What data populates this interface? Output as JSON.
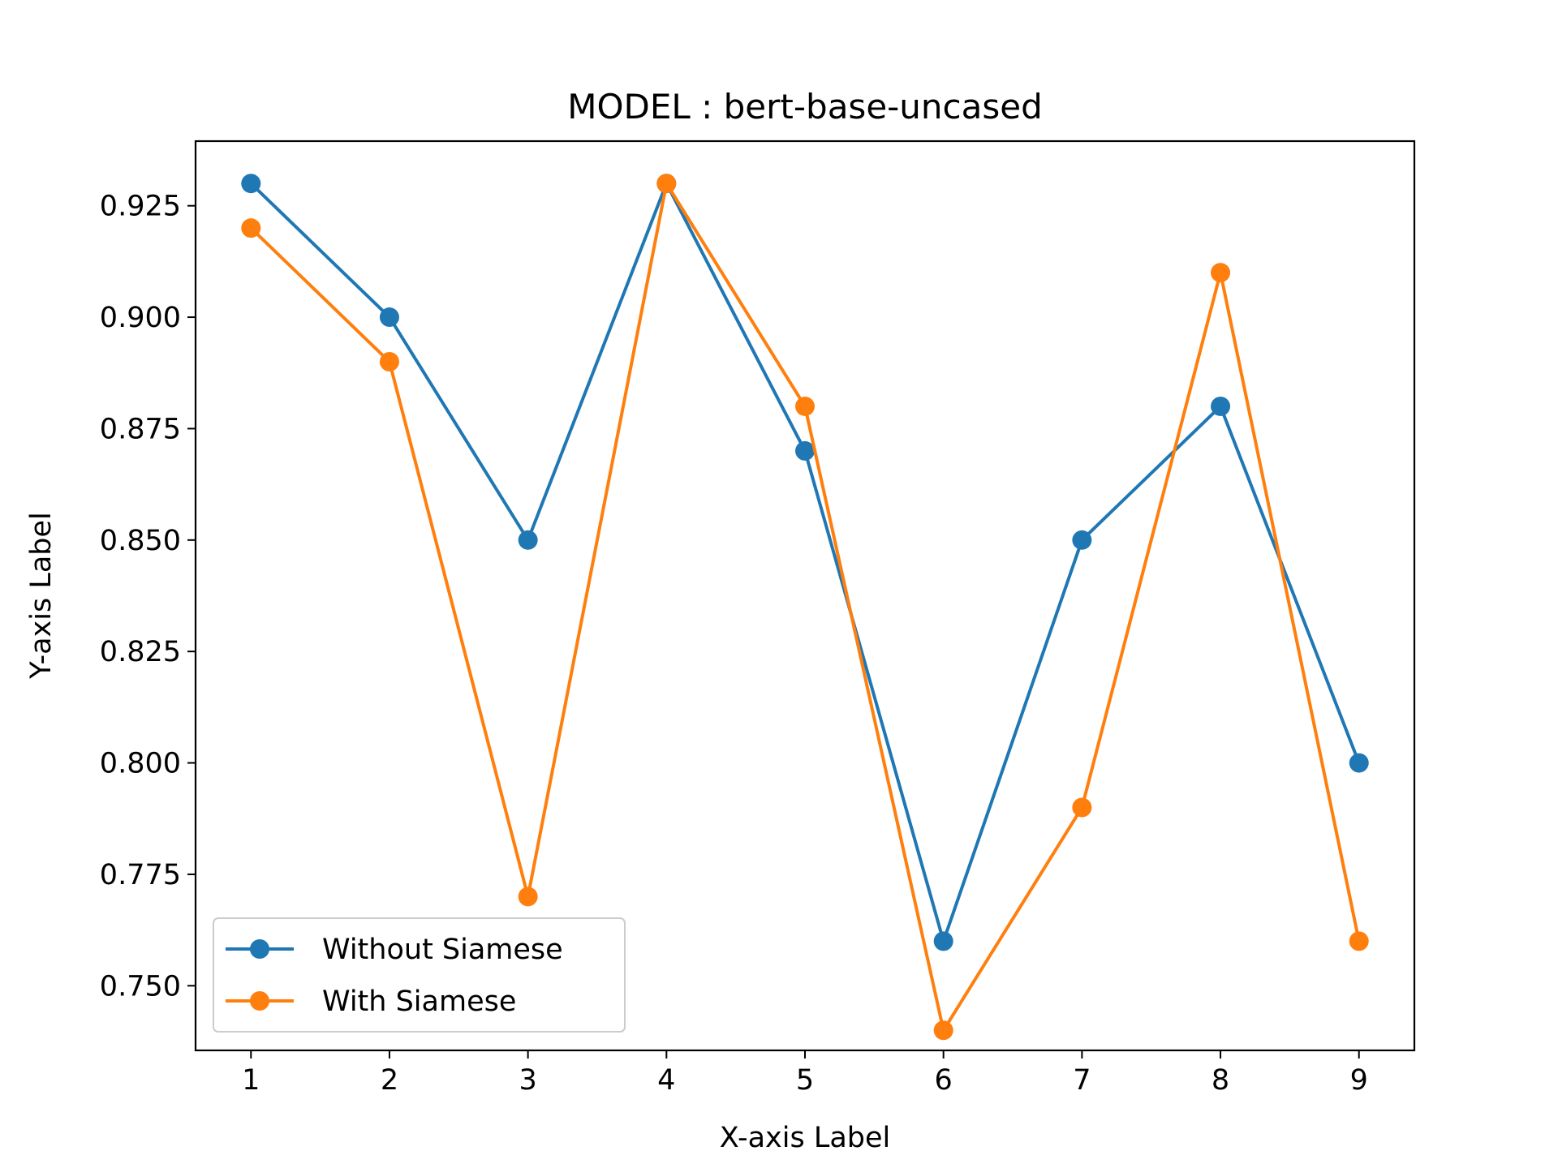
{
  "chart_data": {
    "type": "line",
    "title": "MODEL : bert-base-uncased",
    "xlabel": "X-axis Label",
    "ylabel": "Y-axis Label",
    "x": [
      1,
      2,
      3,
      4,
      5,
      6,
      7,
      8,
      9
    ],
    "xlim": [
      0.6,
      9.4
    ],
    "ylim": [
      0.7355,
      0.9395
    ],
    "xticks": [
      1,
      2,
      3,
      4,
      5,
      6,
      7,
      8,
      9
    ],
    "xtick_labels": [
      "1",
      "2",
      "3",
      "4",
      "5",
      "6",
      "7",
      "8",
      "9"
    ],
    "yticks": [
      0.75,
      0.775,
      0.8,
      0.825,
      0.85,
      0.875,
      0.9,
      0.925
    ],
    "ytick_labels": [
      "0.750",
      "0.775",
      "0.800",
      "0.825",
      "0.850",
      "0.875",
      "0.900",
      "0.925"
    ],
    "grid": false,
    "legend_position": "bottom-left",
    "series": [
      {
        "name": "Without Siamese",
        "color": "#1f77b4",
        "marker": "circle",
        "values": [
          0.93,
          0.9,
          0.85,
          0.93,
          0.87,
          0.76,
          0.85,
          0.88,
          0.8
        ]
      },
      {
        "name": "With Siamese",
        "color": "#ff7f0e",
        "marker": "circle",
        "values": [
          0.92,
          0.89,
          0.77,
          0.93,
          0.88,
          0.74,
          0.79,
          0.91,
          0.76
        ]
      }
    ]
  }
}
